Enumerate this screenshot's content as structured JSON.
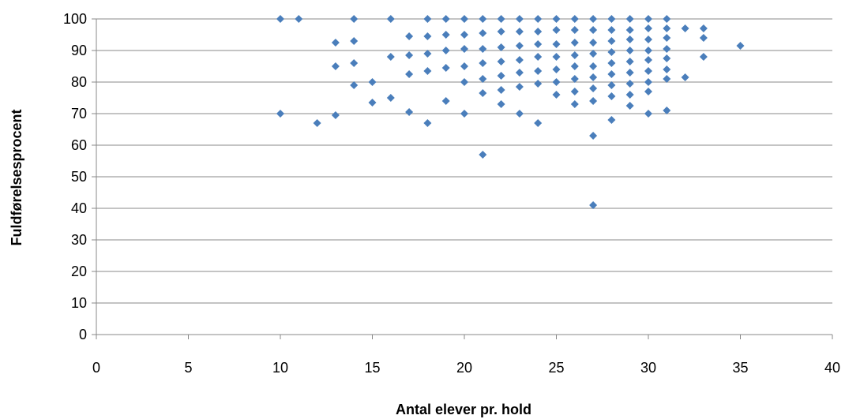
{
  "chart_data": {
    "type": "scatter",
    "title": "",
    "xlabel": "Antal elever pr. hold",
    "ylabel": "Fuldførelsesprocent",
    "xlim": [
      0,
      40
    ],
    "ylim": [
      0,
      100
    ],
    "xticks": [
      0,
      5,
      10,
      15,
      20,
      25,
      30,
      35,
      40
    ],
    "yticks": [
      0,
      10,
      20,
      30,
      40,
      50,
      60,
      70,
      80,
      90,
      100
    ],
    "grid": "horizontal",
    "legend": "none",
    "marker": "diamond",
    "colors": {
      "marker": "#4a7ebb",
      "grid": "#888888",
      "axis": "#888888"
    },
    "series": [
      {
        "points": [
          [
            10,
            100
          ],
          [
            10,
            70
          ],
          [
            11,
            100
          ],
          [
            12,
            67
          ],
          [
            13,
            92.5
          ],
          [
            13,
            85
          ],
          [
            13,
            69.5
          ],
          [
            14,
            100
          ],
          [
            14,
            93
          ],
          [
            14,
            86
          ],
          [
            14,
            79
          ],
          [
            15,
            80
          ],
          [
            15,
            73.5
          ],
          [
            16,
            100
          ],
          [
            16,
            88
          ],
          [
            16,
            75
          ],
          [
            17,
            94.5
          ],
          [
            17,
            88.5
          ],
          [
            17,
            82.5
          ],
          [
            17,
            70.5
          ],
          [
            18,
            100
          ],
          [
            18,
            94.5
          ],
          [
            18,
            89
          ],
          [
            18,
            83.5
          ],
          [
            18,
            67
          ],
          [
            19,
            100
          ],
          [
            19,
            95
          ],
          [
            19,
            90
          ],
          [
            19,
            84.5
          ],
          [
            19,
            74
          ],
          [
            20,
            100
          ],
          [
            20,
            95
          ],
          [
            20,
            90.5
          ],
          [
            20,
            85
          ],
          [
            20,
            80
          ],
          [
            20,
            70
          ],
          [
            21,
            100
          ],
          [
            21,
            95.5
          ],
          [
            21,
            90.5
          ],
          [
            21,
            86
          ],
          [
            21,
            81
          ],
          [
            21,
            76.5
          ],
          [
            21,
            57
          ],
          [
            22,
            100
          ],
          [
            22,
            96
          ],
          [
            22,
            91
          ],
          [
            22,
            86.5
          ],
          [
            22,
            82
          ],
          [
            22,
            77.5
          ],
          [
            22,
            73
          ],
          [
            23,
            100
          ],
          [
            23,
            96
          ],
          [
            23,
            91.5
          ],
          [
            23,
            87
          ],
          [
            23,
            83
          ],
          [
            23,
            78.5
          ],
          [
            23,
            70
          ],
          [
            24,
            100
          ],
          [
            24,
            96
          ],
          [
            24,
            92
          ],
          [
            24,
            88
          ],
          [
            24,
            83.5
          ],
          [
            24,
            79.5
          ],
          [
            24,
            67
          ],
          [
            25,
            100
          ],
          [
            25,
            96.5
          ],
          [
            25,
            92
          ],
          [
            25,
            88
          ],
          [
            25,
            84
          ],
          [
            25,
            80
          ],
          [
            25,
            76
          ],
          [
            26,
            100
          ],
          [
            26,
            96.5
          ],
          [
            26,
            92.5
          ],
          [
            26,
            88.5
          ],
          [
            26,
            85
          ],
          [
            26,
            81
          ],
          [
            26,
            77
          ],
          [
            26,
            73
          ],
          [
            27,
            100
          ],
          [
            27,
            96.5
          ],
          [
            27,
            92.5
          ],
          [
            27,
            89
          ],
          [
            27,
            85
          ],
          [
            27,
            81.5
          ],
          [
            27,
            78
          ],
          [
            27,
            74
          ],
          [
            27,
            63
          ],
          [
            27,
            41
          ],
          [
            28,
            100
          ],
          [
            28,
            96.5
          ],
          [
            28,
            93
          ],
          [
            28,
            89.5
          ],
          [
            28,
            86
          ],
          [
            28,
            82.5
          ],
          [
            28,
            79
          ],
          [
            28,
            75.5
          ],
          [
            28,
            68
          ],
          [
            29,
            100
          ],
          [
            29,
            96.5
          ],
          [
            29,
            93.5
          ],
          [
            29,
            90
          ],
          [
            29,
            86.5
          ],
          [
            29,
            83
          ],
          [
            29,
            79.5
          ],
          [
            29,
            76
          ],
          [
            29,
            72.5
          ],
          [
            30,
            100
          ],
          [
            30,
            97
          ],
          [
            30,
            93.5
          ],
          [
            30,
            90
          ],
          [
            30,
            87
          ],
          [
            30,
            83.5
          ],
          [
            30,
            80
          ],
          [
            30,
            77
          ],
          [
            30,
            70
          ],
          [
            31,
            100
          ],
          [
            31,
            97
          ],
          [
            31,
            94
          ],
          [
            31,
            90.5
          ],
          [
            31,
            87.5
          ],
          [
            31,
            84
          ],
          [
            31,
            81
          ],
          [
            31,
            71
          ],
          [
            32,
            97
          ],
          [
            32,
            81.5
          ],
          [
            33,
            97
          ],
          [
            33,
            94
          ],
          [
            33,
            88
          ],
          [
            35,
            91.5
          ]
        ]
      }
    ]
  }
}
